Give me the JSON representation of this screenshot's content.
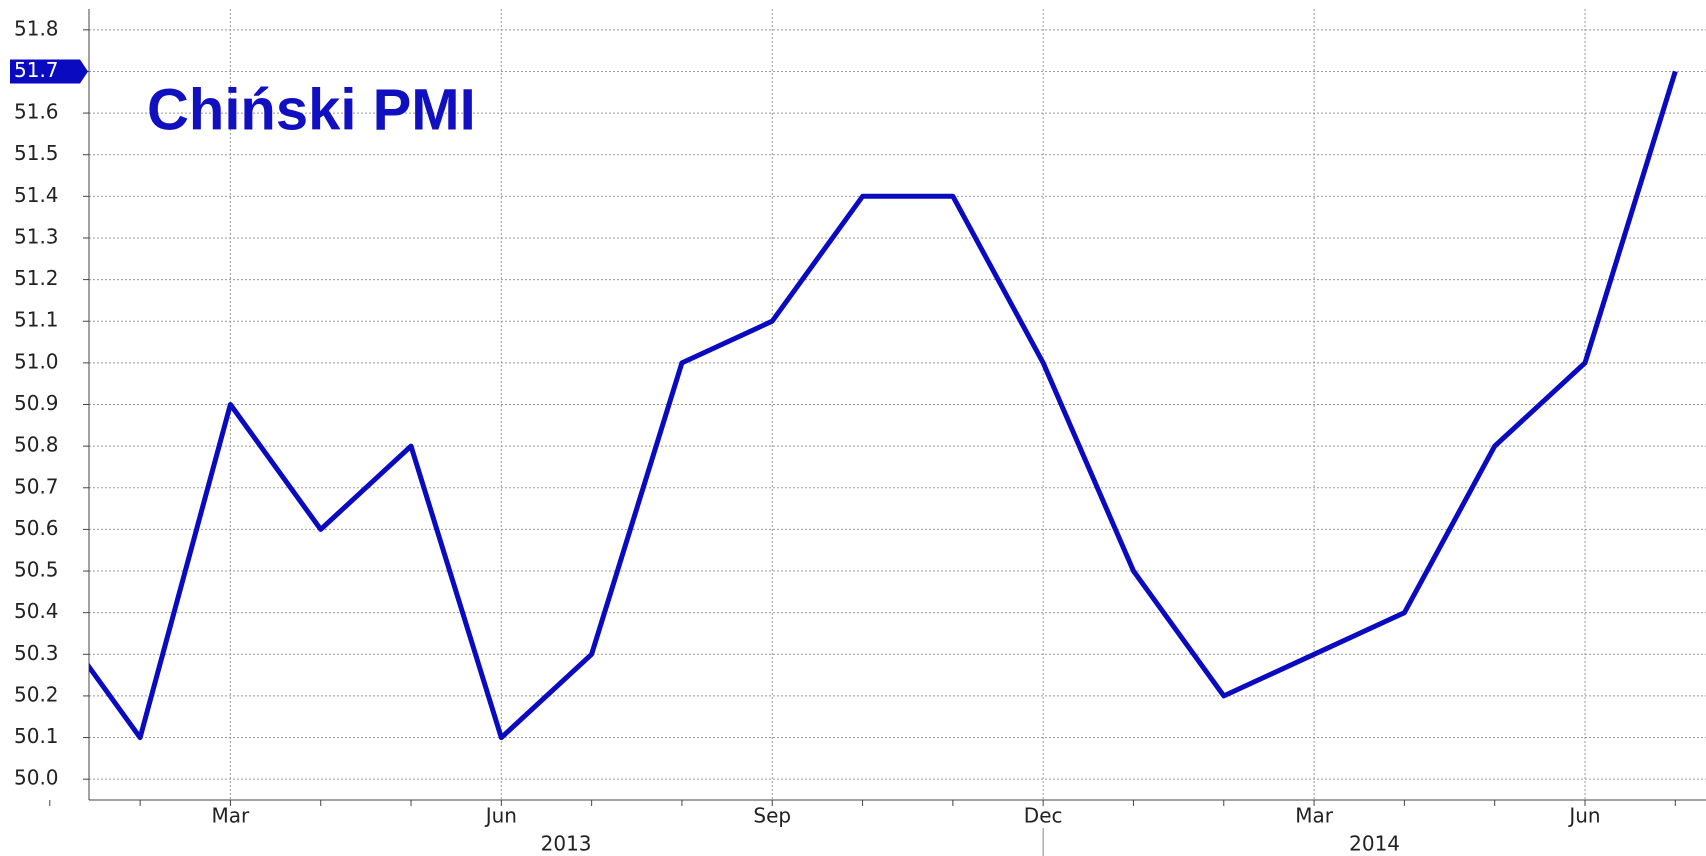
{
  "chart_data": {
    "type": "line",
    "title": "Chiński PMI",
    "categories": [
      null,
      null,
      "Mar",
      null,
      null,
      "Jun",
      null,
      null,
      "Sep",
      null,
      null,
      "Dec",
      null,
      null,
      "Mar",
      null,
      null,
      "Jun",
      null
    ],
    "years": [
      "2013",
      "2013",
      "2013",
      "2013",
      "2013",
      "2013",
      "2013",
      "2013",
      "2013",
      "2013",
      "2013",
      "2013",
      "2014",
      "2014",
      "2014",
      "2014",
      "2014",
      "2014",
      "2014"
    ],
    "series": [
      {
        "name": "PMI",
        "color": "#0a0ac0",
        "values": [
          50.4,
          50.1,
          50.9,
          50.6,
          50.8,
          50.1,
          50.3,
          51.0,
          51.1,
          51.4,
          51.4,
          51.0,
          50.5,
          50.2,
          50.3,
          50.4,
          50.8,
          51.0,
          51.7
        ]
      }
    ],
    "ylim": [
      49.95,
      51.85
    ],
    "yticks": [
      {
        "value": 50.0,
        "label": "50.0"
      },
      50.1,
      50.2,
      50.3,
      50.4,
      50.5,
      50.6,
      50.7,
      50.8,
      50.9,
      {
        "value": 51.0,
        "label": "51.0"
      },
      51.1,
      51.2,
      51.3,
      51.4,
      51.5,
      51.6,
      51.7,
      51.8
    ],
    "grid": true
  }
}
